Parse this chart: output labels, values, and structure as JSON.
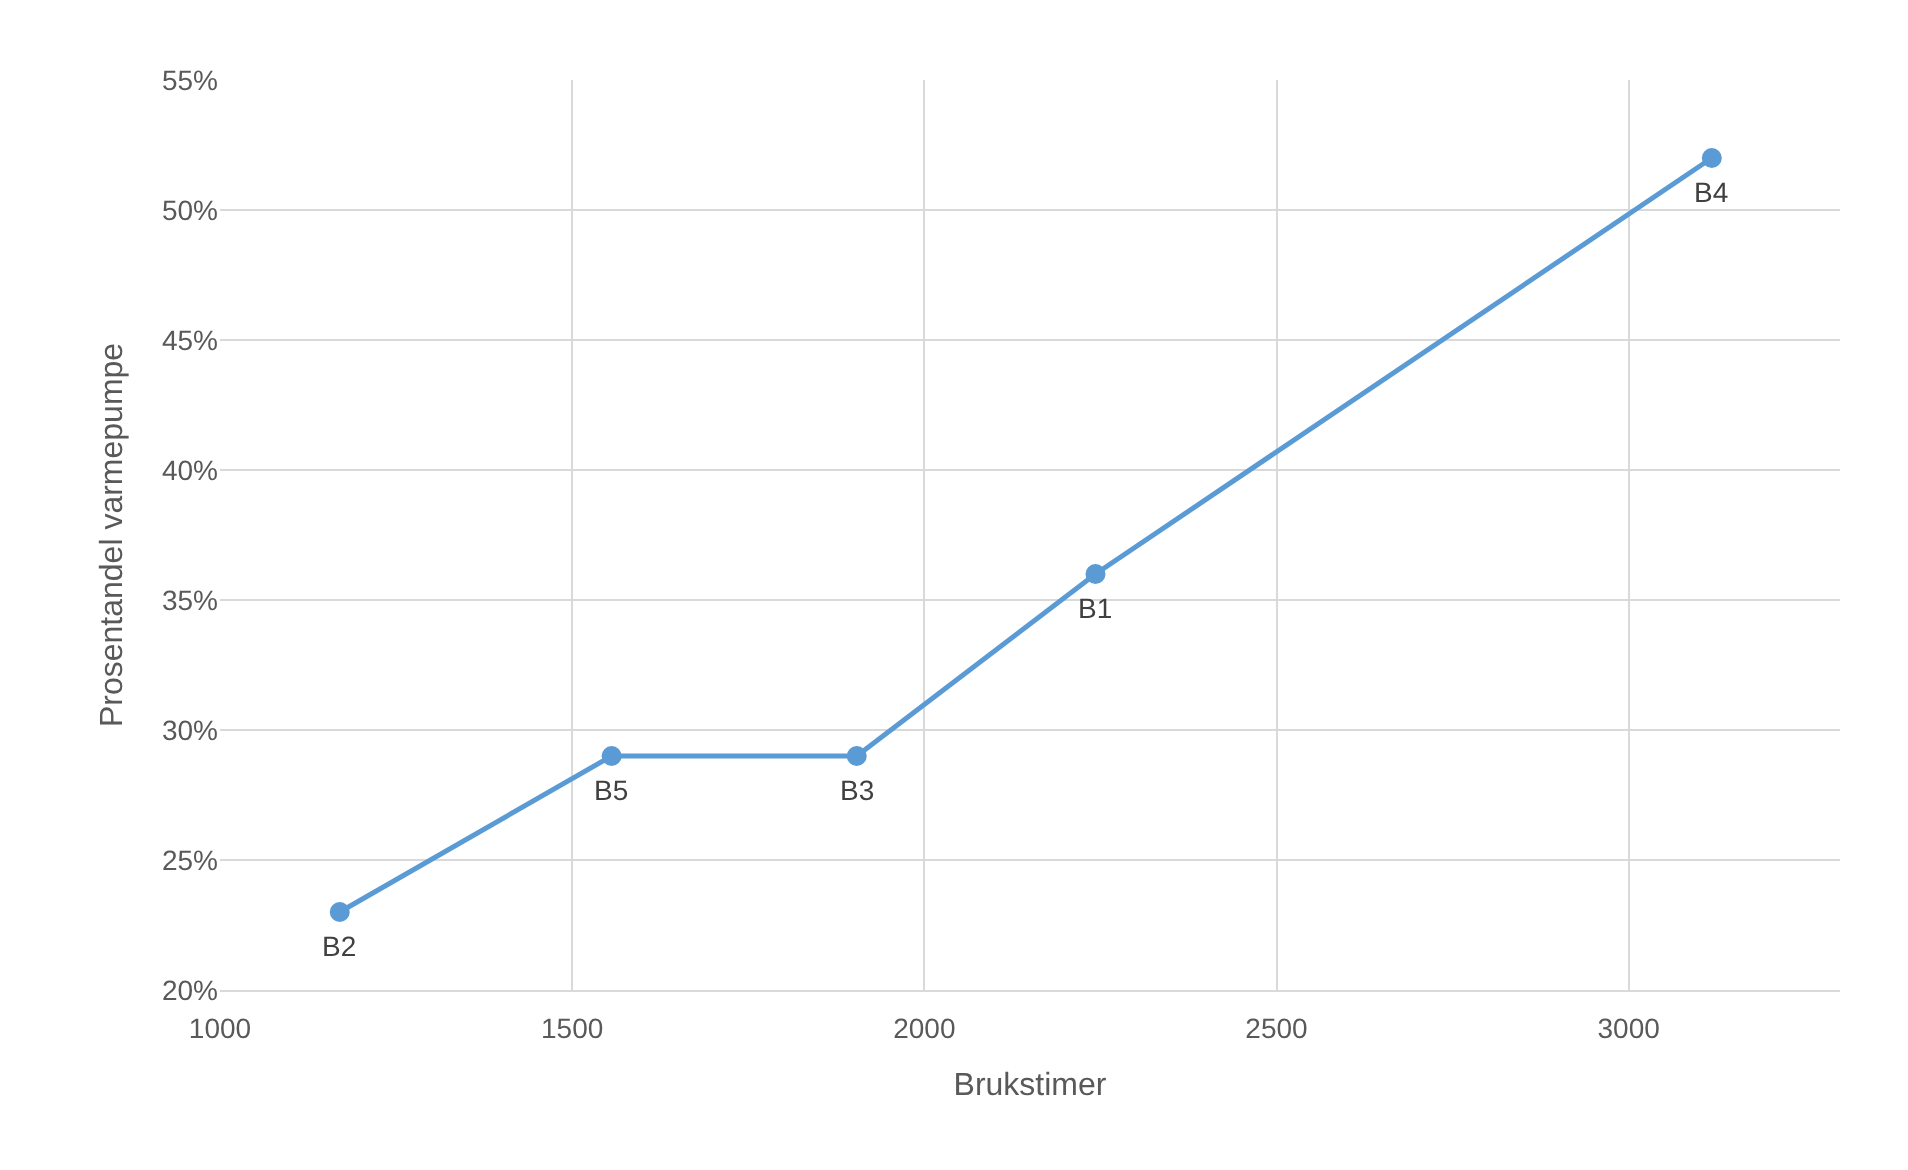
{
  "chart_data": {
    "type": "line",
    "xlabel": "Brukstimer",
    "ylabel": "Prosentandel varmepumpe",
    "x": [
      1170,
      1556,
      1904,
      2243,
      3118
    ],
    "series": [
      {
        "color": "#5b9bd5",
        "values": [
          23,
          29,
          29,
          36,
          52
        ]
      }
    ],
    "annotations": [
      {
        "text": "B2",
        "x": 1170,
        "y": 23
      },
      {
        "text": "B5",
        "x": 1556,
        "y": 29
      },
      {
        "text": "B3",
        "x": 1904,
        "y": 29
      },
      {
        "text": "B1",
        "x": 2243,
        "y": 36
      },
      {
        "text": "B4",
        "x": 3118,
        "y": 52
      }
    ],
    "xlim": [
      1000,
      3300
    ],
    "xticks": [
      1000,
      1500,
      2000,
      2500,
      3000
    ],
    "ylim": [
      20,
      55
    ],
    "yticks": [
      {
        "value": 20,
        "label": "20%"
      },
      {
        "value": 25,
        "label": "25%"
      },
      {
        "value": 30,
        "label": "30%"
      },
      {
        "value": 35,
        "label": "35%"
      },
      {
        "value": 40,
        "label": "40%"
      },
      {
        "value": 45,
        "label": "45%"
      },
      {
        "value": 50,
        "label": "50%"
      },
      {
        "value": 55,
        "label": "55%"
      }
    ],
    "grid": true,
    "marker": "circle",
    "line_style": "solid"
  }
}
